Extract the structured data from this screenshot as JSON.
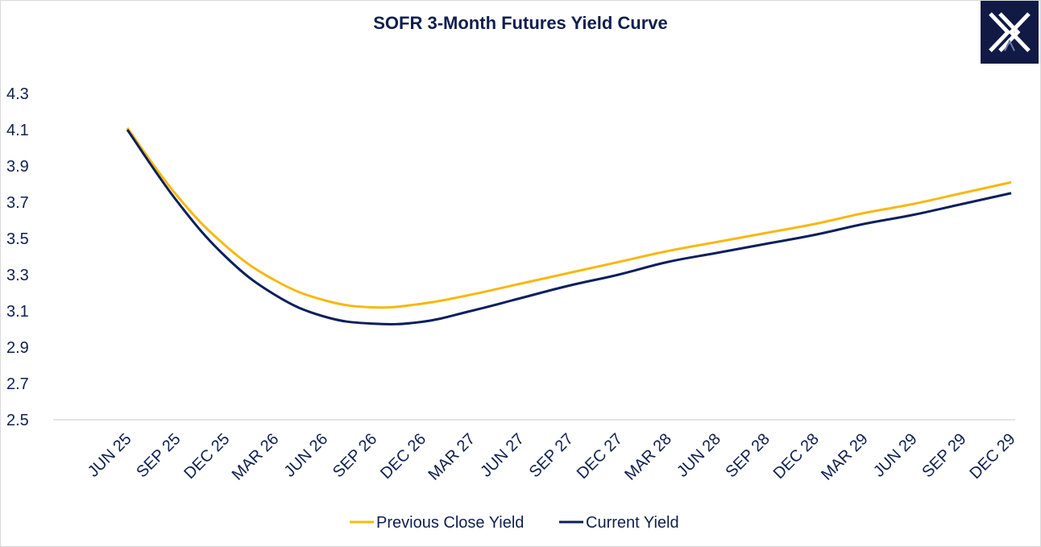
{
  "colors": {
    "previous": "#F7B80E",
    "current": "#0B1F5C",
    "text": "#0F1F4F",
    "axis": "#C8C8C8",
    "logo_bg": "#101A45"
  },
  "logo": {
    "icon": "x-logo-icon"
  },
  "chart_data": {
    "type": "line",
    "title": "SOFR 3-Month Futures Yield Curve",
    "xlabel": "",
    "ylabel": "",
    "categories": [
      "JUN 25",
      "SEP 25",
      "DEC 25",
      "MAR 26",
      "JUN 26",
      "SEP 26",
      "DEC 26",
      "MAR 27",
      "JUN 27",
      "SEP 27",
      "DEC 27",
      "MAR 28",
      "JUN 28",
      "SEP 28",
      "DEC 28",
      "MAR 29",
      "JUN 29",
      "SEP 29",
      "DEC 29"
    ],
    "yticks": [
      "4.3",
      "4.1",
      "3.9",
      "3.7",
      "3.5",
      "3.3",
      "3.1",
      "2.9",
      "2.7",
      "2.5"
    ],
    "ylim": [
      2.5,
      4.3
    ],
    "grid": false,
    "legend_position": "bottom",
    "series": [
      {
        "name": "Previous Close Yield",
        "values": [
          4.11,
          3.74,
          3.46,
          3.27,
          3.16,
          3.12,
          3.14,
          3.19,
          3.25,
          3.31,
          3.37,
          3.43,
          3.48,
          3.53,
          3.58,
          3.64,
          3.69,
          3.75,
          3.81
        ]
      },
      {
        "name": "Current Yield",
        "values": [
          4.1,
          3.71,
          3.4,
          3.19,
          3.07,
          3.03,
          3.04,
          3.1,
          3.17,
          3.24,
          3.3,
          3.37,
          3.42,
          3.47,
          3.52,
          3.58,
          3.63,
          3.69,
          3.75
        ]
      }
    ]
  }
}
